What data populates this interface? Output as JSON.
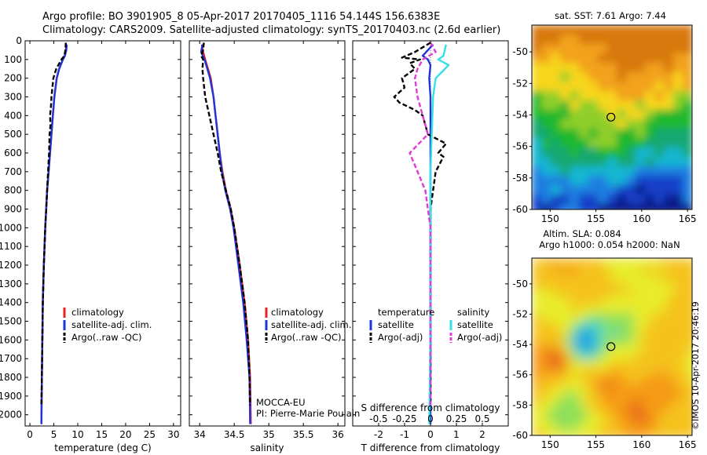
{
  "header": {
    "line1": "Argo profile: BO 3901905_8 05-Apr-2017 20170405_1116 54.144S 156.6383E",
    "line2": "Climatology: CARS2009. Satellite-adjusted climatology: synTS_20170403.nc (2.6d earlier)"
  },
  "colors": {
    "climatology": "#e8221e",
    "satellite": "#1e36d8",
    "argo": "#000000",
    "salinity_satellite": "#33e0e6",
    "salinity_argo": "#e23ad6"
  },
  "chart_data": [
    {
      "id": "temperature",
      "type": "line",
      "xlabel": "temperature (deg C)",
      "xlim": [
        -1,
        31.5
      ],
      "xticks": [
        0,
        5,
        10,
        15,
        20,
        25,
        30
      ],
      "ylim": [
        2060,
        0
      ],
      "yticks": [
        0,
        100,
        200,
        300,
        400,
        500,
        600,
        700,
        800,
        900,
        1000,
        1100,
        1200,
        1300,
        1400,
        1500,
        1600,
        1700,
        1800,
        1900,
        2000
      ],
      "legend": [
        "climatology",
        "satellite-adj. clim.",
        "Argo(..raw -QC)"
      ],
      "series": [
        {
          "name": "climatology",
          "color": "#e8221e",
          "style": "solid",
          "depth": [
            20,
            50,
            80,
            100,
            150,
            200,
            300,
            400,
            500,
            600,
            700,
            800,
            900,
            1000,
            1200,
            1400,
            1600,
            1800,
            2050
          ],
          "values": [
            7.6,
            7.5,
            7.3,
            6.9,
            6.1,
            5.6,
            5.1,
            4.8,
            4.5,
            4.2,
            3.9,
            3.6,
            3.4,
            3.2,
            2.9,
            2.7,
            2.6,
            2.5,
            2.4
          ]
        },
        {
          "name": "satellite-adj. clim.",
          "color": "#1e36d8",
          "style": "solid",
          "depth": [
            20,
            50,
            80,
            100,
            150,
            200,
            300,
            400,
            500,
            600,
            700,
            800,
            900,
            1000,
            1200,
            1400,
            1600,
            1800,
            2050
          ],
          "values": [
            7.7,
            7.6,
            7.3,
            6.9,
            6.1,
            5.6,
            5.1,
            4.8,
            4.5,
            4.2,
            3.9,
            3.6,
            3.4,
            3.2,
            2.9,
            2.7,
            2.6,
            2.5,
            2.4
          ]
        },
        {
          "name": "Argo(..raw -QC)",
          "color": "#000000",
          "style": "dashed",
          "depth": [
            10,
            50,
            80,
            100,
            150,
            200,
            250,
            300,
            350,
            400,
            450,
            500,
            600,
            700,
            800,
            900,
            1000,
            1200,
            1400,
            1600,
            1800,
            1950
          ],
          "values": [
            7.5,
            7.4,
            7.2,
            6.6,
            5.5,
            4.9,
            4.7,
            4.5,
            4.4,
            4.2,
            4.3,
            4.1,
            4.0,
            3.8,
            3.6,
            3.4,
            3.2,
            2.9,
            2.7,
            2.6,
            2.5,
            2.4
          ]
        }
      ]
    },
    {
      "id": "salinity",
      "type": "line",
      "xlabel": "salinity",
      "xlim": [
        33.85,
        36.1
      ],
      "xticks": [
        34,
        34.5,
        35,
        35.5,
        36
      ],
      "ylim": [
        2060,
        0
      ],
      "legend": [
        "climatology",
        "satellite-adj. clim.",
        "Argo(..raw -QC)"
      ],
      "annotation": [
        "MOCCA-EU",
        "PI: Pierre-Marie Poulain"
      ],
      "series": [
        {
          "name": "climatology",
          "color": "#e8221e",
          "style": "solid",
          "depth": [
            20,
            60,
            100,
            150,
            200,
            300,
            400,
            500,
            600,
            700,
            800,
            900,
            1000,
            1200,
            1400,
            1600,
            1800,
            2050
          ],
          "values": [
            34.03,
            34.05,
            34.08,
            34.12,
            34.16,
            34.2,
            34.23,
            34.26,
            34.29,
            34.33,
            34.38,
            34.45,
            34.5,
            34.58,
            34.65,
            34.7,
            34.73,
            34.74
          ]
        },
        {
          "name": "satellite-adj. clim.",
          "color": "#1e36d8",
          "style": "solid",
          "depth": [
            20,
            60,
            100,
            150,
            200,
            300,
            400,
            500,
            600,
            700,
            800,
            900,
            1000,
            1200,
            1400,
            1600,
            1800,
            2050
          ],
          "values": [
            34.04,
            34.02,
            34.07,
            34.11,
            34.15,
            34.2,
            34.23,
            34.26,
            34.29,
            34.32,
            34.37,
            34.44,
            34.49,
            34.56,
            34.63,
            34.68,
            34.72,
            34.73
          ]
        },
        {
          "name": "Argo(..raw -QC)",
          "color": "#000000",
          "style": "dashed",
          "depth": [
            10,
            50,
            80,
            100,
            150,
            200,
            300,
            400,
            500,
            600,
            700,
            800,
            900,
            1000,
            1200,
            1400,
            1600,
            1800,
            1950
          ],
          "values": [
            34.06,
            34.05,
            34.02,
            34.05,
            34.04,
            34.05,
            34.08,
            34.14,
            34.2,
            34.26,
            34.31,
            34.38,
            34.45,
            34.5,
            34.58,
            34.65,
            34.7,
            34.72,
            34.73
          ]
        }
      ]
    },
    {
      "id": "difference",
      "type": "line",
      "xlabel": "T difference from climatology",
      "xlabel_top": "S difference from climatology",
      "xlim": [
        -3,
        3
      ],
      "xticks": [
        -2,
        -1,
        0,
        1,
        2
      ],
      "xticks_S": [
        "-0.5",
        "-0.25",
        "0",
        "0.25",
        "0.5"
      ],
      "ylim": [
        2060,
        0
      ],
      "legend_titles": [
        "temperature",
        "salinity"
      ],
      "legend": [
        "satellite",
        "Argo(-adj)",
        "satellite",
        "Argo(-adj)"
      ],
      "series": [
        {
          "name": "temperature satellite",
          "color": "#1e36d8",
          "style": "solid",
          "depth": [
            20,
            80,
            100,
            130,
            200,
            300,
            500,
            700,
            1000,
            1500,
            2050
          ],
          "values": [
            0.1,
            -0.3,
            -0.1,
            0.0,
            -0.05,
            0.0,
            0.0,
            0.0,
            0.0,
            0.0,
            0.0
          ]
        },
        {
          "name": "temperature Argo(-adj)",
          "color": "#000000",
          "style": "dashed",
          "depth": [
            10,
            60,
            90,
            100,
            120,
            150,
            200,
            250,
            300,
            330,
            370,
            400,
            450,
            500,
            550,
            600,
            620,
            700,
            800,
            900,
            1000,
            1200,
            1500,
            1800,
            1950
          ],
          "values": [
            0.0,
            -0.6,
            -1.1,
            -0.4,
            -0.8,
            -0.6,
            -1.1,
            -1.0,
            -1.4,
            -1.2,
            -0.6,
            -0.3,
            -0.2,
            -0.1,
            0.6,
            0.3,
            0.5,
            0.2,
            0.1,
            0.0,
            0.0,
            0.0,
            0.0,
            0.0,
            0.0
          ]
        },
        {
          "name": "salinity satellite",
          "color": "#33e0e6",
          "style": "solid",
          "depth": [
            20,
            80,
            100,
            130,
            200,
            300,
            500,
            700,
            1000,
            1500,
            2050
          ],
          "values": [
            0.6,
            0.5,
            0.3,
            0.7,
            0.2,
            0.1,
            0.05,
            0.0,
            0.0,
            0.0,
            -0.05
          ]
        },
        {
          "name": "salinity Argo(-adj)",
          "color": "#e23ad6",
          "style": "dashed",
          "depth": [
            10,
            60,
            100,
            150,
            200,
            300,
            400,
            500,
            600,
            700,
            800,
            900,
            1000,
            1200,
            1500,
            1800,
            1950
          ],
          "values": [
            0.0,
            0.2,
            -0.3,
            -0.5,
            -0.6,
            -0.5,
            -0.3,
            -0.1,
            -0.8,
            -0.5,
            -0.2,
            -0.1,
            0.0,
            0.0,
            0.0,
            0.0,
            0.0
          ]
        }
      ]
    },
    {
      "id": "sst-map",
      "type": "heatmap",
      "title": "sat. SST: 7.61  Argo: 7.44",
      "xlim": [
        148,
        165.5
      ],
      "ylim": [
        -60,
        -48.3
      ],
      "xticks": [
        150,
        155,
        160,
        165
      ],
      "yticks": [
        -50,
        -52,
        -54,
        -56,
        -58,
        -60
      ],
      "marker": {
        "lon": 156.64,
        "lat": -54.14
      }
    },
    {
      "id": "sla-map",
      "type": "heatmap",
      "title": [
        "Altim. SLA: 0.084",
        "Argo h1000: 0.054 h2000: NaN"
      ],
      "xlim": [
        148,
        165.5
      ],
      "ylim": [
        -60,
        -48.3
      ],
      "xticks": [
        150,
        155,
        160,
        165
      ],
      "yticks": [
        -50,
        -52,
        -54,
        -56,
        -58,
        -60
      ],
      "marker": {
        "lon": 156.64,
        "lat": -54.14
      }
    }
  ],
  "footer": {
    "copyright": "©IMOS 10-Apr-2017 20:46:19"
  }
}
